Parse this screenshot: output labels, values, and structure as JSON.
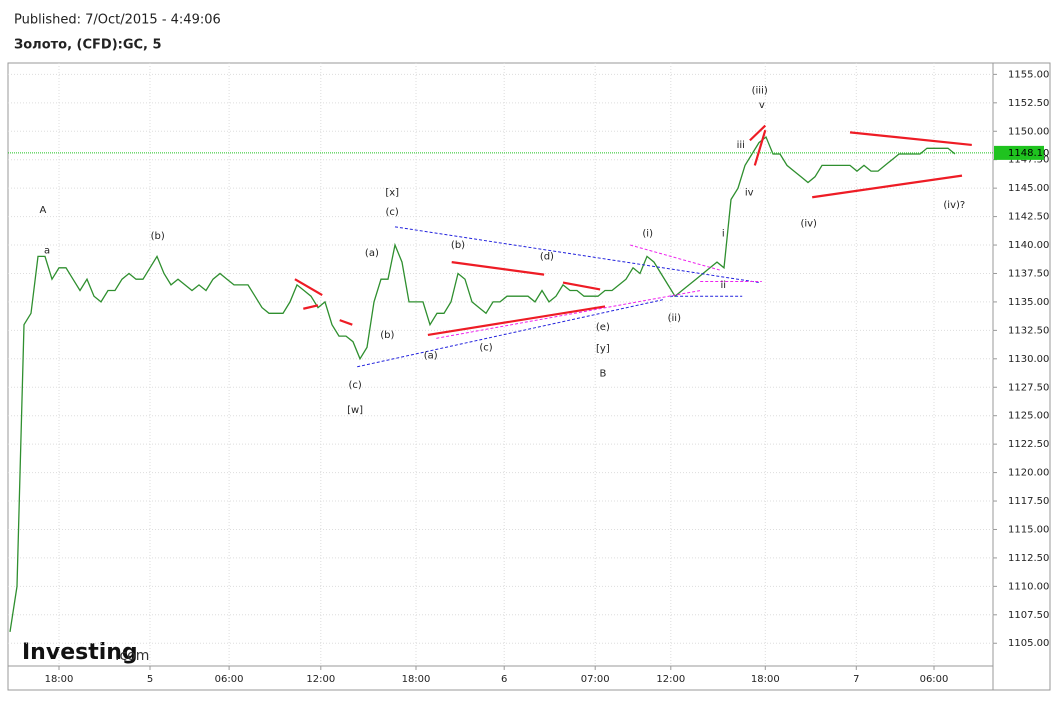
{
  "header": {
    "published": "Published: 7/Oct/2015 - 4:49:06",
    "instrument": "Золото, (CFD):GC, 5"
  },
  "logo": {
    "brand": "Investing",
    "domain": ".com"
  },
  "chart_data": {
    "type": "line",
    "color": "#2f8f2f",
    "x": [
      0,
      1,
      2,
      3,
      4,
      5,
      6,
      7,
      8,
      9,
      10,
      11,
      12,
      13,
      14,
      15,
      16,
      17,
      18,
      19,
      20,
      21,
      22,
      23,
      24,
      25,
      26,
      27,
      28,
      29,
      30,
      31,
      32,
      33,
      34,
      35,
      36,
      37,
      38,
      39,
      40,
      41,
      42,
      43,
      44,
      45,
      46,
      47,
      48,
      49,
      50,
      51,
      52,
      53,
      54,
      55,
      56,
      57,
      58,
      59,
      60,
      61,
      62,
      63,
      64,
      65,
      66,
      67,
      68,
      69,
      70,
      71,
      72,
      73,
      74,
      75,
      76,
      77,
      78,
      79,
      80,
      81,
      82,
      83,
      84,
      85,
      86,
      87,
      88,
      89,
      90,
      91,
      92,
      93,
      94,
      95,
      96,
      97,
      98,
      99,
      100,
      101,
      102,
      103,
      104,
      105,
      106,
      107,
      108,
      109,
      110,
      111,
      112,
      113,
      114,
      115,
      116,
      117,
      118,
      119,
      120,
      121,
      122,
      123,
      124,
      125,
      126,
      127,
      128,
      129,
      130,
      131,
      132,
      133,
      134,
      135
    ],
    "values": [
      1106,
      1110,
      1133,
      1134,
      1139,
      1139,
      1137,
      1138,
      1138,
      1137,
      1136,
      1137,
      1135.5,
      1135,
      1136,
      1136,
      1137,
      1137.5,
      1137,
      1137,
      1138,
      1139,
      1137.5,
      1136.5,
      1137,
      1136.5,
      1136,
      1136.5,
      1136,
      1137,
      1137.5,
      1137,
      1136.5,
      1136.5,
      1136.5,
      1135.5,
      1134.5,
      1134,
      1134,
      1134,
      1135,
      1136.5,
      1136,
      1135.5,
      1134.5,
      1135,
      1133,
      1132,
      1132,
      1131.5,
      1130,
      1131,
      1135,
      1137,
      1137,
      1140,
      1138.5,
      1135,
      1135,
      1135,
      1133,
      1134,
      1134,
      1135,
      1137.5,
      1137,
      1135,
      1134.5,
      1134,
      1135,
      1135,
      1135.5,
      1135.5,
      1135.5,
      1135.5,
      1135,
      1136,
      1135,
      1135.5,
      1136.5,
      1136,
      1136,
      1135.5,
      1135.5,
      1135.5,
      1136,
      1136,
      1136.5,
      1137,
      1138,
      1137.5,
      1139,
      1138.5,
      1137.5,
      1136.5,
      1135.5,
      1136,
      1136.5,
      1137,
      1137.5,
      1138,
      1138.5,
      1138,
      1144,
      1145,
      1147,
      1148,
      1149,
      1149.5,
      1148,
      1148,
      1147,
      1146.5,
      1146,
      1145.5,
      1146,
      1147,
      1147,
      1147,
      1147,
      1147,
      1146.5,
      1147,
      1146.5,
      1146.5,
      1147,
      1147.5,
      1148,
      1148,
      1148,
      1148,
      1148.5,
      1148.5,
      1148.5,
      1148.5,
      1148
    ],
    "xlim": [
      0,
      140
    ],
    "ylim": [
      1103,
      1156
    ],
    "grid": true,
    "xticks": [
      {
        "value": 7,
        "label": "18:00"
      },
      {
        "value": 20,
        "label": "5"
      },
      {
        "value": 31.3,
        "label": "06:00"
      },
      {
        "value": 44.4,
        "label": "12:00"
      },
      {
        "value": 58,
        "label": "18:00"
      },
      {
        "value": 70.6,
        "label": "6"
      },
      {
        "value": 83.6,
        "label": "07:00"
      },
      {
        "value": 94.4,
        "label": "12:00"
      },
      {
        "value": 107.9,
        "label": "18:00"
      },
      {
        "value": 120.9,
        "label": "7"
      },
      {
        "value": 132,
        "label": "06:00"
      }
    ],
    "yticks": [
      {
        "value": 1105,
        "label": "1105.00"
      },
      {
        "value": 1107.5,
        "label": "1107.50"
      },
      {
        "value": 1110,
        "label": "1110.00"
      },
      {
        "value": 1112.5,
        "label": "1112.50"
      },
      {
        "value": 1115,
        "label": "1115.00"
      },
      {
        "value": 1117.5,
        "label": "1117.50"
      },
      {
        "value": 1120,
        "label": "1120.00"
      },
      {
        "value": 1122.5,
        "label": "1122.50"
      },
      {
        "value": 1125,
        "label": "1125.00"
      },
      {
        "value": 1127.5,
        "label": "1127.50"
      },
      {
        "value": 1130,
        "label": "1130.00"
      },
      {
        "value": 1132.5,
        "label": "1132.50"
      },
      {
        "value": 1135,
        "label": "1135.00"
      },
      {
        "value": 1137.5,
        "label": "1137.50"
      },
      {
        "value": 1140,
        "label": "1140.00"
      },
      {
        "value": 1142.5,
        "label": "1142.50"
      },
      {
        "value": 1145,
        "label": "1145.00"
      },
      {
        "value": 1147.5,
        "label": "1147.50"
      },
      {
        "value": 1150,
        "label": "1150.00"
      },
      {
        "value": 1152.5,
        "label": "1152.50"
      },
      {
        "value": 1155,
        "label": "1155.00"
      }
    ],
    "last_price": {
      "value": 1148.1,
      "label": "1148.10",
      "color": "#1fc31f"
    },
    "trendlines": [
      {
        "x": [
          40.7,
          44.6
        ],
        "y": [
          1137,
          1135.6
        ],
        "color": "#ee1c25",
        "dash": false
      },
      {
        "x": [
          41.9,
          44
        ],
        "y": [
          1134.4,
          1134.7
        ],
        "color": "#ee1c25",
        "dash": false
      },
      {
        "x": [
          47.1,
          48.9
        ],
        "y": [
          1133.4,
          1133
        ],
        "color": "#ee1c25",
        "dash": false
      },
      {
        "x": [
          59.7,
          85
        ],
        "y": [
          1132.1,
          1134.6
        ],
        "color": "#ee1c25",
        "dash": false
      },
      {
        "x": [
          63.1,
          76.3
        ],
        "y": [
          1138.5,
          1137.4
        ],
        "color": "#ee1c25",
        "dash": false
      },
      {
        "x": [
          79,
          84.3
        ],
        "y": [
          1136.7,
          1136.1
        ],
        "color": "#ee1c25",
        "dash": false
      },
      {
        "x": [
          105.7,
          107.9
        ],
        "y": [
          1149.2,
          1150.5
        ],
        "color": "#ee1c25",
        "dash": false
      },
      {
        "x": [
          106.4,
          107.9
        ],
        "y": [
          1147,
          1150.1
        ],
        "color": "#ee1c25",
        "dash": false
      },
      {
        "x": [
          120,
          137.4
        ],
        "y": [
          1149.9,
          1148.8
        ],
        "color": "#ee1c25",
        "dash": false
      },
      {
        "x": [
          114.6,
          136
        ],
        "y": [
          1144.2,
          1146.1
        ],
        "color": "#ee1c25",
        "dash": false
      },
      {
        "x": [
          49.6,
          93.3
        ],
        "y": [
          1129.3,
          1135.2
        ],
        "color": "#2222dd",
        "dash": true
      },
      {
        "x": [
          55,
          107.1
        ],
        "y": [
          1141.6,
          1136.7
        ],
        "color": "#2222dd",
        "dash": true
      },
      {
        "x": [
          94.3,
          104.6
        ],
        "y": [
          1135.5,
          1135.5
        ],
        "color": "#2222dd",
        "dash": true
      },
      {
        "x": [
          60.9,
          98.6
        ],
        "y": [
          1131.8,
          1136
        ],
        "color": "#ee22ee",
        "dash": true
      },
      {
        "x": [
          88.6,
          101.4
        ],
        "y": [
          1140,
          1137.8
        ],
        "color": "#ee22ee",
        "dash": true
      },
      {
        "x": [
          98.6,
          107.4
        ],
        "y": [
          1136.8,
          1136.8
        ],
        "color": "#ee22ee",
        "dash": true
      }
    ],
    "annotations": [
      {
        "text": "A",
        "x": 4.7,
        "y": 1143.1
      },
      {
        "text": "a",
        "x": 5.3,
        "y": 1139.5
      },
      {
        "text": "(b)",
        "x": 21.1,
        "y": 1140.8
      },
      {
        "text": "[x]",
        "x": 54.6,
        "y": 1144.6
      },
      {
        "text": "(c)",
        "x": 54.6,
        "y": 1142.9
      },
      {
        "text": "(a)",
        "x": 51.7,
        "y": 1139.3
      },
      {
        "text": "(b)",
        "x": 53.9,
        "y": 1132.1
      },
      {
        "text": "(c)",
        "x": 49.3,
        "y": 1127.7
      },
      {
        "text": "[w]",
        "x": 49.3,
        "y": 1125.5
      },
      {
        "text": "(b)",
        "x": 64,
        "y": 1140
      },
      {
        "text": "(a)",
        "x": 60.1,
        "y": 1130.3
      },
      {
        "text": "(c)",
        "x": 68,
        "y": 1131
      },
      {
        "text": "(d)",
        "x": 76.7,
        "y": 1139
      },
      {
        "text": "(e)",
        "x": 84.7,
        "y": 1132.8
      },
      {
        "text": "[y]",
        "x": 84.7,
        "y": 1130.9
      },
      {
        "text": "B",
        "x": 84.7,
        "y": 1128.7
      },
      {
        "text": "(i)",
        "x": 91.1,
        "y": 1141
      },
      {
        "text": "(ii)",
        "x": 94.9,
        "y": 1133.6
      },
      {
        "text": "i",
        "x": 101.9,
        "y": 1141
      },
      {
        "text": "ii",
        "x": 101.9,
        "y": 1136.5
      },
      {
        "text": "iii",
        "x": 104.4,
        "y": 1148.8
      },
      {
        "text": "iv",
        "x": 105.6,
        "y": 1144.6
      },
      {
        "text": "(iii)",
        "x": 107.1,
        "y": 1153.6
      },
      {
        "text": "v",
        "x": 107.4,
        "y": 1152.3
      },
      {
        "text": "(iv)",
        "x": 114.1,
        "y": 1141.9
      },
      {
        "text": "(iv)?",
        "x": 134.9,
        "y": 1143.5
      }
    ]
  }
}
